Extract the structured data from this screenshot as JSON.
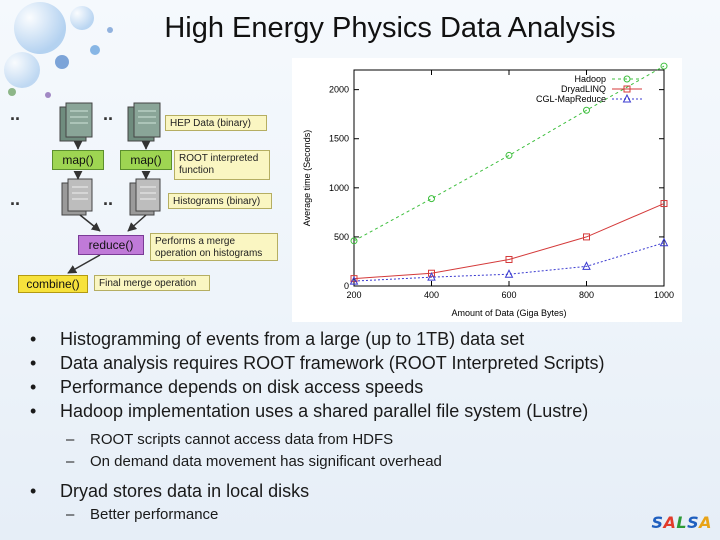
{
  "slide": {
    "title": "High Energy Physics Data Analysis",
    "bullets": [
      "Histogramming of events from a large (up to 1TB) data set",
      "Data analysis requires ROOT framework (ROOT Interpreted Scripts)",
      "Performance depends on disk access speeds",
      "Hadoop implementation uses a shared parallel file system (Lustre)"
    ],
    "sub_bullets_1": [
      "ROOT scripts cannot access data from HDFS",
      "On demand data movement has significant overhead"
    ],
    "bullet_last": "Dryad stores data in local disks",
    "sub_bullets_2": [
      "Better performance"
    ],
    "bullet_marker": "•",
    "dash_marker": "–",
    "logo": {
      "letters": [
        "S",
        "A",
        "L",
        "S",
        "A"
      ],
      "colors": [
        "#1f5fbf",
        "#e23b2a",
        "#2c9a36",
        "#1f5fbf",
        "#e8a317"
      ]
    }
  },
  "diagram": {
    "notes": {
      "hep_data": "HEP Data (binary)",
      "root_fn": "ROOT interpreted\nfunction",
      "histograms": "Histograms (binary)",
      "merge": "Performs a merge\noperation on histograms",
      "final": "Final merge operation"
    },
    "boxes": {
      "map1": "map()",
      "map2": "map()",
      "reduce": "reduce()",
      "combine": "combine()"
    },
    "ellipsis": ".."
  },
  "chart_data": {
    "type": "line",
    "xlabel": "Amount of Data (Giga Bytes)",
    "ylabel": "Average time (Seconds)",
    "xlim": [
      200,
      1000
    ],
    "ylim": [
      0,
      2200
    ],
    "xticks": [
      200,
      400,
      600,
      800,
      1000
    ],
    "yticks": [
      0,
      500,
      1000,
      1500,
      2000
    ],
    "legend_position": "top-right",
    "series": [
      {
        "name": "Hadoop",
        "color": "#3fbf3f",
        "marker": "circle",
        "dash": "3,3",
        "x": [
          200,
          400,
          600,
          800,
          1000
        ],
        "y": [
          460,
          890,
          1330,
          1790,
          2240
        ]
      },
      {
        "name": "DryadLINQ",
        "color": "#d43a3a",
        "marker": "square",
        "dash": "",
        "x": [
          200,
          400,
          600,
          800,
          1000
        ],
        "y": [
          75,
          130,
          270,
          500,
          840
        ]
      },
      {
        "name": "CGL-MapReduce",
        "color": "#3b3bd0",
        "marker": "triangle",
        "dash": "2,2",
        "x": [
          200,
          400,
          600,
          800,
          1000
        ],
        "y": [
          50,
          90,
          120,
          200,
          440
        ]
      }
    ]
  }
}
